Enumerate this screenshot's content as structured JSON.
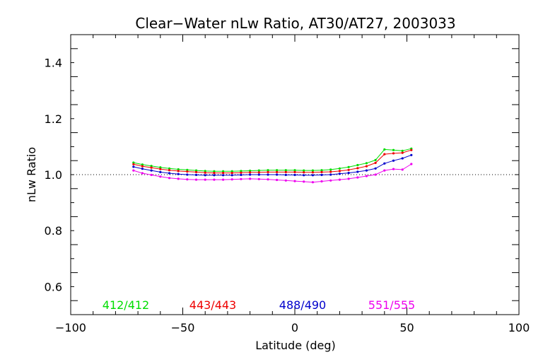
{
  "chart_data": {
    "type": "line",
    "title": "Clear−Water nLw Ratio, AT30/AT27, 2003033",
    "xlabel": "Latitude (deg)",
    "ylabel": "nLw Ratio",
    "xlim": [
      -100,
      100
    ],
    "ylim": [
      0.5,
      1.5
    ],
    "xticks": [
      -100,
      -50,
      0,
      50,
      100
    ],
    "xtick_labels": [
      "−100",
      "−50",
      "0",
      "50",
      "100"
    ],
    "yticks": [
      0.6,
      0.8,
      1.0,
      1.2,
      1.4
    ],
    "ytick_labels": [
      "0.6",
      "0.8",
      "1.0",
      "1.2",
      "1.4"
    ],
    "reference_line": {
      "y": 1.0,
      "style": "dotted"
    },
    "grid": false,
    "legend": "bottom, inside plot",
    "x": [
      -72,
      -68,
      -64,
      -60,
      -56,
      -52,
      -48,
      -44,
      -40,
      -36,
      -32,
      -28,
      -24,
      -20,
      -16,
      -12,
      -8,
      -4,
      0,
      4,
      8,
      12,
      16,
      20,
      24,
      28,
      32,
      36,
      40,
      44,
      48,
      52
    ],
    "series": [
      {
        "name": "412/412",
        "color": "#00dd00",
        "values": [
          1.043,
          1.036,
          1.031,
          1.026,
          1.022,
          1.019,
          1.017,
          1.015,
          1.013,
          1.012,
          1.012,
          1.012,
          1.013,
          1.014,
          1.015,
          1.016,
          1.016,
          1.016,
          1.016,
          1.015,
          1.015,
          1.016,
          1.018,
          1.022,
          1.027,
          1.034,
          1.041,
          1.052,
          1.09,
          1.088,
          1.085,
          1.093
        ]
      },
      {
        "name": "443/443",
        "color": "#ee0000",
        "values": [
          1.037,
          1.03,
          1.025,
          1.02,
          1.016,
          1.013,
          1.011,
          1.009,
          1.007,
          1.006,
          1.006,
          1.006,
          1.007,
          1.008,
          1.008,
          1.009,
          1.009,
          1.009,
          1.009,
          1.008,
          1.008,
          1.009,
          1.01,
          1.013,
          1.017,
          1.023,
          1.03,
          1.042,
          1.073,
          1.076,
          1.078,
          1.088
        ]
      },
      {
        "name": "488/490",
        "color": "#0000cc",
        "values": [
          1.028,
          1.021,
          1.015,
          1.009,
          1.005,
          1.002,
          1.0,
          0.999,
          0.998,
          0.998,
          0.998,
          0.998,
          0.999,
          1.0,
          1.0,
          1.0,
          1.0,
          0.999,
          0.999,
          0.998,
          0.998,
          0.999,
          1.0,
          1.003,
          1.006,
          1.01,
          1.015,
          1.022,
          1.04,
          1.05,
          1.058,
          1.07
        ]
      },
      {
        "name": "551/555",
        "color": "#ee00ee",
        "values": [
          1.015,
          1.005,
          0.999,
          0.993,
          0.988,
          0.985,
          0.983,
          0.982,
          0.982,
          0.982,
          0.982,
          0.983,
          0.984,
          0.985,
          0.984,
          0.983,
          0.981,
          0.979,
          0.977,
          0.975,
          0.973,
          0.976,
          0.979,
          0.982,
          0.985,
          0.99,
          0.995,
          1.0,
          1.015,
          1.02,
          1.018,
          1.038
        ]
      }
    ]
  }
}
